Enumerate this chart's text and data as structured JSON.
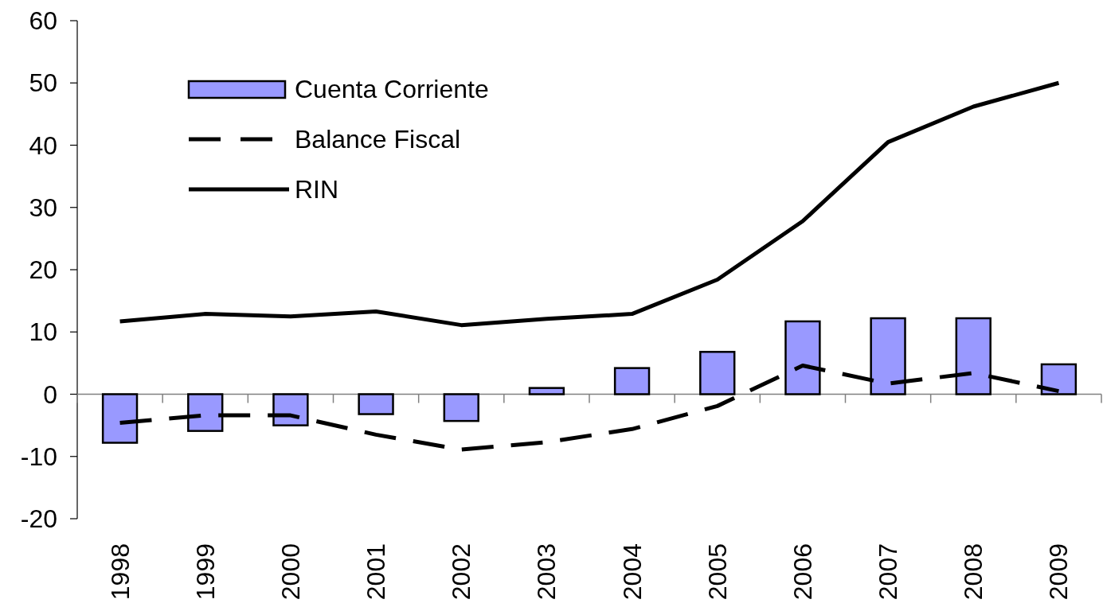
{
  "chart_data": {
    "type": "bar",
    "categories": [
      "1998",
      "1999",
      "2000",
      "2001",
      "2002",
      "2003",
      "2004",
      "2005",
      "2006",
      "2007",
      "2008",
      "2009"
    ],
    "series": [
      {
        "name": "Cuenta Corriente",
        "color": "#9999ff",
        "values": [
          -7.8,
          -5.9,
          -5.0,
          -3.2,
          -4.3,
          1.0,
          4.2,
          6.8,
          11.7,
          12.2,
          12.2,
          4.8
        ]
      },
      {
        "name": "Balance Fiscal",
        "type": "line",
        "color": "#000000",
        "line_style": "dashed",
        "values": [
          -4.6,
          -3.4,
          -3.4,
          -6.5,
          -8.9,
          -7.7,
          -5.6,
          -1.9,
          4.6,
          1.7,
          3.4,
          0.5
        ]
      },
      {
        "name": "RIN",
        "type": "line",
        "color": "#000000",
        "line_style": "solid",
        "values": [
          11.7,
          12.9,
          12.5,
          13.3,
          11.1,
          12.1,
          12.9,
          18.4,
          27.8,
          40.5,
          46.2,
          50.0
        ]
      }
    ],
    "ylim": [
      -20,
      60
    ],
    "yticks": [
      -20,
      -10,
      0,
      10,
      20,
      30,
      40,
      50,
      60
    ],
    "legend": "top left"
  }
}
